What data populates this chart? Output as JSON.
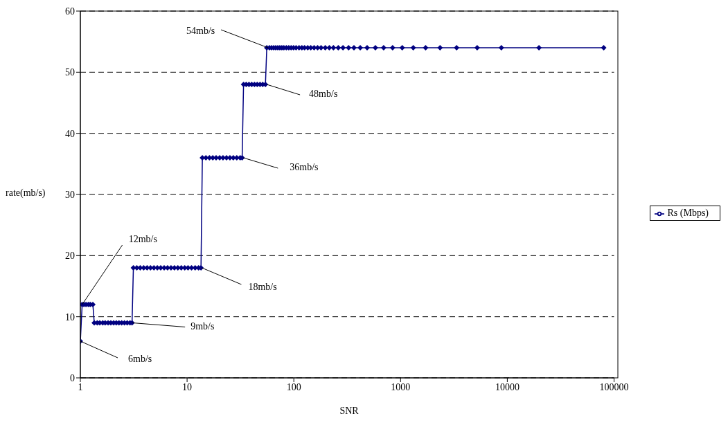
{
  "chart_data": {
    "type": "line",
    "xlabel": "SNR",
    "ylabel": "rate(mb/s)",
    "log": "x",
    "xlim": [
      1,
      100000
    ],
    "xticks": [
      1,
      10,
      100,
      1000,
      10000,
      100000
    ],
    "ylim": [
      0,
      60
    ],
    "yticks": [
      0,
      10,
      20,
      30,
      40,
      50,
      60
    ],
    "grid": "y",
    "legend": "right",
    "marker": "diamond",
    "line_style": "solid",
    "x": [
      1,
      1.04,
      1.08,
      1.13,
      1.19,
      1.24,
      1.31,
      1.35,
      1.44,
      1.52,
      1.62,
      1.71,
      1.82,
      1.93,
      2.05,
      2.17,
      2.3,
      2.44,
      2.59,
      2.75,
      2.92,
      3.05,
      3.14,
      3.38,
      3.64,
      3.92,
      4.22,
      4.54,
      4.89,
      5.26,
      5.66,
      6.1,
      6.56,
      7.07,
      7.61,
      8.19,
      8.82,
      9.5,
      10.2,
      11,
      11.9,
      12.8,
      13.5,
      13.9,
      15,
      16.2,
      17.4,
      18.7,
      20.2,
      21.7,
      23.4,
      25.2,
      27.1,
      29.2,
      31.4,
      32.8,
      33.8,
      35.8,
      38,
      40.3,
      42.8,
      45.4,
      48.2,
      51.1,
      54.2,
      55.8,
      59.1,
      61.8,
      64.7,
      67.6,
      70.7,
      73.9,
      77.2,
      80.7,
      85.1,
      89.6,
      94.4,
      99.4,
      105,
      112,
      119,
      126,
      135,
      144,
      155,
      167,
      180,
      197,
      215,
      235,
      261,
      289,
      326,
      366,
      419,
      486,
      581,
      694,
      842,
      1036,
      1315,
      1717,
      2344,
      3350,
      5220,
      8800,
      19800,
      80000
    ],
    "series": [
      {
        "name": "Rs (Mbps)",
        "color": "#000080",
        "values": [
          6,
          12,
          12,
          12,
          12,
          12,
          12,
          9,
          9,
          9,
          9,
          9,
          9,
          9,
          9,
          9,
          9,
          9,
          9,
          9,
          9,
          9,
          18,
          18,
          18,
          18,
          18,
          18,
          18,
          18,
          18,
          18,
          18,
          18,
          18,
          18,
          18,
          18,
          18,
          18,
          18,
          18,
          18,
          36,
          36,
          36,
          36,
          36,
          36,
          36,
          36,
          36,
          36,
          36,
          36,
          36,
          48,
          48,
          48,
          48,
          48,
          48,
          48,
          48,
          48,
          54,
          54,
          54,
          54,
          54,
          54,
          54,
          54,
          54,
          54,
          54,
          54,
          54,
          54,
          54,
          54,
          54,
          54,
          54,
          54,
          54,
          54,
          54,
          54,
          54,
          54,
          54,
          54,
          54,
          54,
          54,
          54,
          54,
          54,
          54,
          54,
          54,
          54,
          54,
          54,
          54,
          54,
          54
        ]
      }
    ],
    "annotations": [
      {
        "text": "6mb/s",
        "x": 1,
        "y": 6
      },
      {
        "text": "12mb/s",
        "x": 1.04,
        "y": 12
      },
      {
        "text": "9mb/s",
        "x": 3.05,
        "y": 9
      },
      {
        "text": "18mb/s",
        "x": 13.5,
        "y": 18
      },
      {
        "text": "36mb/s",
        "x": 32.8,
        "y": 36
      },
      {
        "text": "48mb/s",
        "x": 54.2,
        "y": 48
      },
      {
        "text": "54mb/s",
        "x": 55.8,
        "y": 54
      }
    ]
  }
}
